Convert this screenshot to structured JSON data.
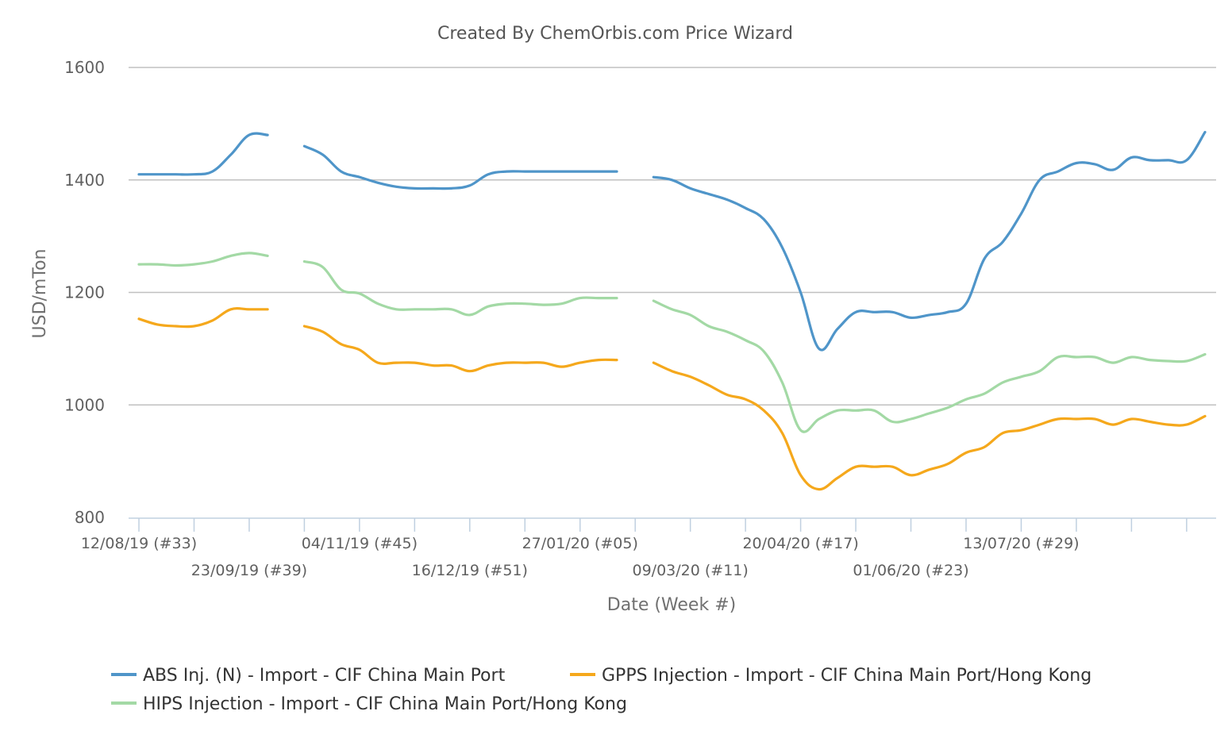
{
  "chart_data": {
    "type": "line",
    "title": "Created By ChemOrbis.com Price Wizard",
    "xlabel": "Date (Week #)",
    "ylabel": "USD/mTon",
    "ylim": [
      800,
      1600
    ],
    "yticks": [
      800,
      1000,
      1200,
      1400,
      1600
    ],
    "grid": true,
    "legend_position": "bottom",
    "x_start": "12/08/19",
    "x_step": "1 week",
    "x_tick_labels": [
      {
        "week": 0,
        "label": "12/08/19 (#33)",
        "row": 0
      },
      {
        "week": 6,
        "label": "23/09/19 (#39)",
        "row": 1
      },
      {
        "week": 12,
        "label": "04/11/19 (#45)",
        "row": 0
      },
      {
        "week": 18,
        "label": "16/12/19 (#51)",
        "row": 1
      },
      {
        "week": 24,
        "label": "27/01/20 (#05)",
        "row": 0
      },
      {
        "week": 30,
        "label": "09/03/20 (#11)",
        "row": 1
      },
      {
        "week": 36,
        "label": "20/04/20 (#17)",
        "row": 0
      },
      {
        "week": 42,
        "label": "01/06/20 (#23)",
        "row": 1
      },
      {
        "week": 48,
        "label": "13/07/20 (#29)",
        "row": 0
      }
    ],
    "series": [
      {
        "name": "ABS Inj. (N) - Import - CIF China Main Port",
        "color": "#4f95c9",
        "values": [
          1410,
          1410,
          1410,
          1410,
          1415,
          1445,
          1480,
          1480,
          null,
          1460,
          1445,
          1415,
          1405,
          1395,
          1388,
          1385,
          1385,
          1385,
          1390,
          1410,
          1415,
          1415,
          1415,
          1415,
          1415,
          1415,
          1415,
          null,
          1405,
          1400,
          1385,
          1375,
          1365,
          1350,
          1330,
          1280,
          1200,
          1100,
          1135,
          1165,
          1165,
          1165,
          1155,
          1160,
          1165,
          1180,
          1260,
          1290,
          1340,
          1400,
          1415,
          1430,
          1428,
          1418,
          1440,
          1435,
          1435,
          1435,
          1485
        ]
      },
      {
        "name": "GPPS Injection - Import - CIF China Main Port/Hong Kong",
        "color": "#f5a81c",
        "values": [
          1153,
          1143,
          1140,
          1140,
          1150,
          1170,
          1170,
          1170,
          null,
          1140,
          1130,
          1108,
          1098,
          1075,
          1075,
          1075,
          1070,
          1070,
          1060,
          1070,
          1075,
          1075,
          1075,
          1068,
          1075,
          1080,
          1080,
          null,
          1075,
          1060,
          1050,
          1035,
          1018,
          1010,
          990,
          950,
          875,
          850,
          870,
          890,
          890,
          890,
          875,
          885,
          895,
          915,
          925,
          950,
          955,
          965,
          975,
          975,
          975,
          965,
          975,
          970,
          965,
          965,
          980
        ]
      },
      {
        "name": "HIPS Injection - Import - CIF China Main Port/Hong Kong",
        "color": "#a3d9a5",
        "values": [
          1250,
          1250,
          1248,
          1250,
          1255,
          1265,
          1270,
          1265,
          null,
          1255,
          1245,
          1205,
          1198,
          1180,
          1170,
          1170,
          1170,
          1170,
          1160,
          1175,
          1180,
          1180,
          1178,
          1180,
          1190,
          1190,
          1190,
          null,
          1185,
          1170,
          1160,
          1140,
          1130,
          1115,
          1095,
          1040,
          955,
          975,
          990,
          990,
          990,
          970,
          975,
          985,
          995,
          1010,
          1020,
          1040,
          1050,
          1060,
          1085,
          1085,
          1085,
          1075,
          1085,
          1080,
          1078,
          1078,
          1090
        ]
      }
    ]
  }
}
